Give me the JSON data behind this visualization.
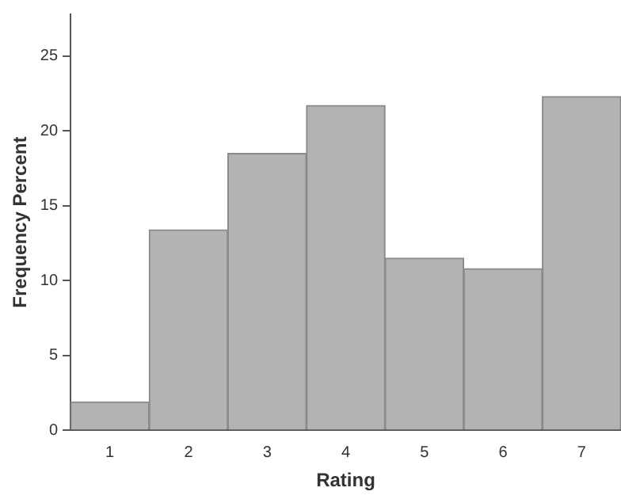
{
  "chart_data": {
    "type": "bar",
    "xlabel": "Rating",
    "ylabel": "Frequency Percent",
    "categories": [
      "1",
      "2",
      "3",
      "4",
      "5",
      "6",
      "7"
    ],
    "values": [
      1.9,
      13.4,
      18.5,
      21.7,
      11.5,
      10.8,
      22.3
    ],
    "color": "#b3b3b3",
    "ylim": [
      0,
      27.8
    ],
    "yticks": [
      0,
      5,
      10,
      15,
      20,
      25
    ],
    "grid": false,
    "legend": false
  }
}
